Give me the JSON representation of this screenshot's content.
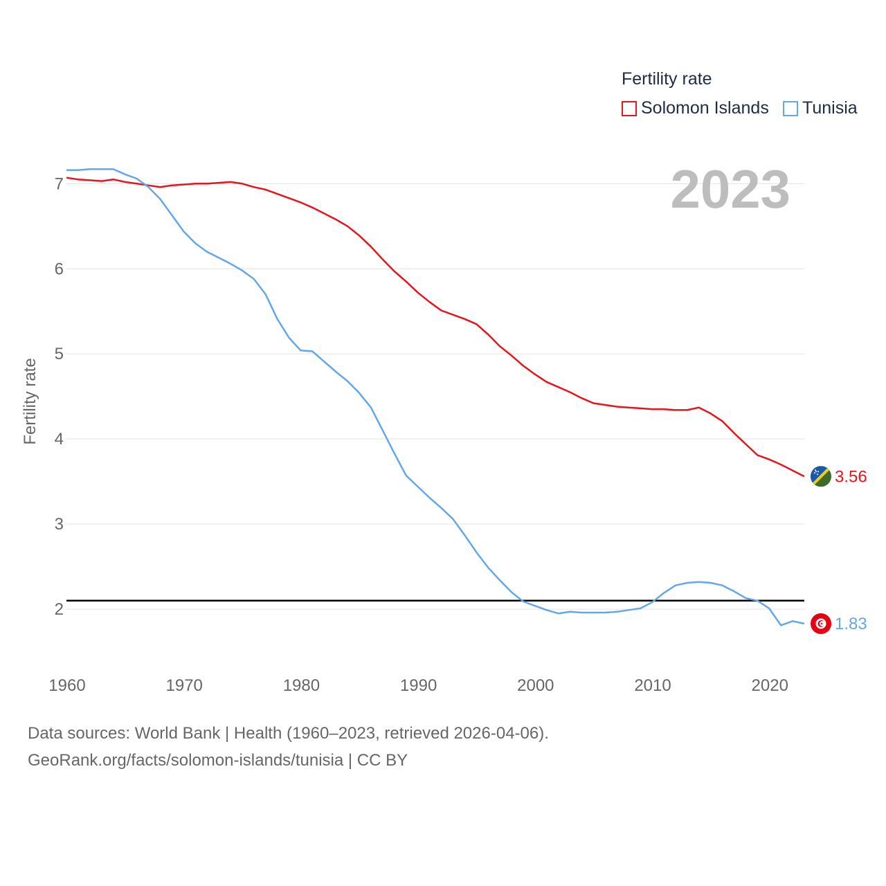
{
  "legend": {
    "title": "Fertility rate",
    "items": [
      {
        "label": "Solomon Islands",
        "color": "#e8141d"
      },
      {
        "label": "Tunisia",
        "color": "#64a7e8"
      }
    ]
  },
  "year_label": "2023",
  "footer": {
    "line1": "Data sources: World Bank | Health (1960–2023, retrieved 2026-04-06).",
    "line2": "GeoRank.org/facts/solomon-islands/tunisia | CC BY"
  },
  "chart_data": {
    "type": "line",
    "title": "Fertility rate",
    "xlabel": "",
    "ylabel": "Fertility rate",
    "xlim": [
      1960,
      2023
    ],
    "ylim": [
      1.35,
      7.45
    ],
    "x_ticks": [
      1960,
      1970,
      1980,
      1990,
      2000,
      2010,
      2020
    ],
    "y_ticks": [
      2,
      3,
      4,
      5,
      6,
      7
    ],
    "grid": true,
    "legend": "top-right",
    "reference_line": {
      "y": 2.1,
      "color": "#000000"
    },
    "x": [
      1960,
      1961,
      1962,
      1963,
      1964,
      1965,
      1966,
      1967,
      1968,
      1969,
      1970,
      1971,
      1972,
      1973,
      1974,
      1975,
      1976,
      1977,
      1978,
      1979,
      1980,
      1981,
      1982,
      1983,
      1984,
      1985,
      1986,
      1987,
      1988,
      1989,
      1990,
      1991,
      1992,
      1993,
      1994,
      1995,
      1996,
      1997,
      1998,
      1999,
      2000,
      2001,
      2002,
      2003,
      2004,
      2005,
      2006,
      2007,
      2008,
      2009,
      2010,
      2011,
      2012,
      2013,
      2014,
      2015,
      2016,
      2017,
      2018,
      2019,
      2020,
      2021,
      2022,
      2023
    ],
    "series": [
      {
        "name": "Solomon Islands",
        "color": "#e8141d",
        "end_label": "3.56",
        "values": [
          7.07,
          7.05,
          7.04,
          7.03,
          7.05,
          7.02,
          7.0,
          6.98,
          6.96,
          6.98,
          6.99,
          7.0,
          7.0,
          7.01,
          7.02,
          7.0,
          6.96,
          6.93,
          6.88,
          6.83,
          6.78,
          6.72,
          6.65,
          6.58,
          6.5,
          6.39,
          6.26,
          6.11,
          5.97,
          5.85,
          5.72,
          5.61,
          5.51,
          5.46,
          5.41,
          5.35,
          5.23,
          5.09,
          4.98,
          4.86,
          4.76,
          4.67,
          4.61,
          4.55,
          4.48,
          4.42,
          4.4,
          4.38,
          4.37,
          4.36,
          4.35,
          4.35,
          4.34,
          4.34,
          4.37,
          4.3,
          4.21,
          4.07,
          3.94,
          3.81,
          3.76,
          3.7,
          3.63,
          3.56
        ]
      },
      {
        "name": "Tunisia",
        "color": "#64a7e8",
        "end_label": "1.83",
        "values": [
          7.16,
          7.16,
          7.17,
          7.17,
          7.17,
          7.11,
          7.06,
          6.96,
          6.82,
          6.63,
          6.44,
          6.3,
          6.2,
          6.13,
          6.06,
          5.98,
          5.88,
          5.7,
          5.41,
          5.19,
          5.04,
          5.03,
          4.91,
          4.79,
          4.68,
          4.54,
          4.37,
          4.1,
          3.83,
          3.57,
          3.44,
          3.31,
          3.19,
          3.06,
          2.87,
          2.67,
          2.49,
          2.34,
          2.2,
          2.09,
          2.04,
          1.99,
          1.95,
          1.97,
          1.96,
          1.96,
          1.96,
          1.97,
          1.99,
          2.01,
          2.08,
          2.19,
          2.28,
          2.31,
          2.32,
          2.31,
          2.28,
          2.21,
          2.13,
          2.1,
          2.01,
          1.81,
          1.86,
          1.83
        ]
      }
    ]
  }
}
